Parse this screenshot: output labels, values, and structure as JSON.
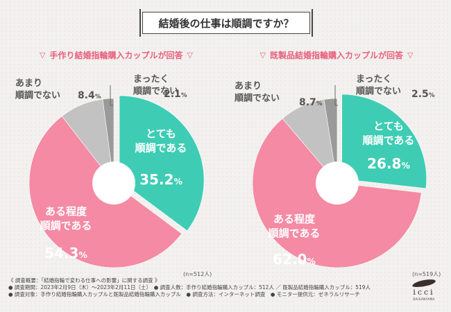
{
  "title": "結婚後の仕事は順調ですか？",
  "chart_data": [
    {
      "type": "pie",
      "subtitle": "手作り結婚指輪購入カップルが回答",
      "n_label": "(n=512人)",
      "slices": [
        {
          "name": "とても順調である",
          "value": 35.2,
          "color": "#3ecdb4",
          "label_lines": [
            "とても",
            "順調である"
          ],
          "pct_text": "35.2%"
        },
        {
          "name": "ある程度順調である",
          "value": 54.3,
          "color": "#f48aa4",
          "label_lines": [
            "ある程度",
            "順調である"
          ],
          "pct_text": "54.3%"
        },
        {
          "name": "あまり順調でない",
          "value": 8.4,
          "color": "#c2c2c2",
          "label_lines": [
            "あまり",
            "順調でない"
          ],
          "pct_text": "8.4%"
        },
        {
          "name": "まったく順調でない",
          "value": 2.1,
          "color": "#9a9a9a",
          "label_lines": [
            "まったく",
            "順調でない"
          ],
          "pct_text": "2.1%"
        }
      ]
    },
    {
      "type": "pie",
      "subtitle": "既製品結婚指輪購入カップルが回答",
      "n_label": "(n=519人)",
      "slices": [
        {
          "name": "とても順調である",
          "value": 26.8,
          "color": "#3ecdb4",
          "label_lines": [
            "とても",
            "順調である"
          ],
          "pct_text": "26.8%"
        },
        {
          "name": "ある程度順調である",
          "value": 62.0,
          "color": "#f48aa4",
          "label_lines": [
            "ある程度",
            "順調である"
          ],
          "pct_text": "62.0%"
        },
        {
          "name": "あまり順調でない",
          "value": 8.7,
          "color": "#c2c2c2",
          "label_lines": [
            "あまり",
            "順調でない"
          ],
          "pct_text": "8.7%"
        },
        {
          "name": "まったく順調でない",
          "value": 2.5,
          "color": "#9a9a9a",
          "label_lines": [
            "まったく",
            "順調でない"
          ],
          "pct_text": "2.5%"
        }
      ]
    }
  ],
  "footer": {
    "line1": "《 調査概要：「結婚指輪で変わる仕事への影響」に関する調査 》",
    "line2": "● 調査期間：2023年2月9日（木）～2023年2月11日（土）　● 調査人数：手作り結婚指輪購入カップル：512人 ／ 既製品結婚指輪購入カップル：519人",
    "line3": "● 調査対象：手作り結婚指輪購入カップルと既製品結婚指輪購入カップル　● 調査方法：インターネット調査　● モニター提供元：ゼネラルリサーチ"
  },
  "logo": {
    "word": "icci",
    "sub": "DAISANYAMA"
  }
}
